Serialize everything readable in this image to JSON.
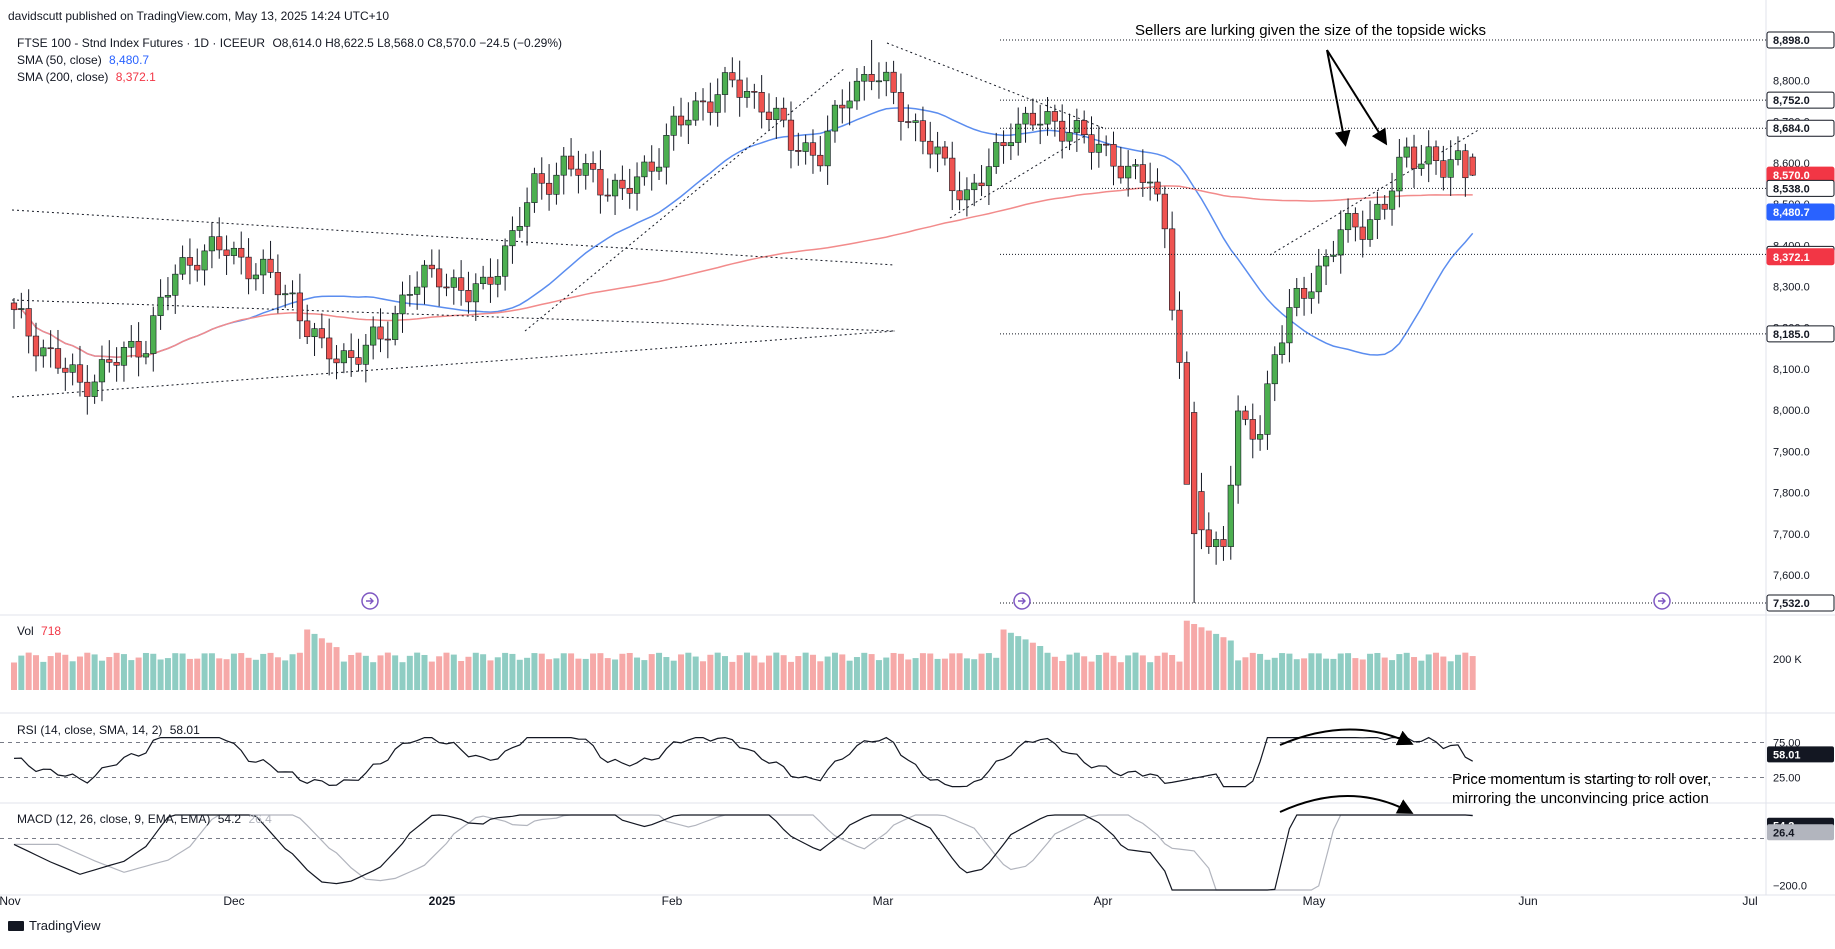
{
  "publish": {
    "user": "davidscutt",
    "text": "published on TradingView.com, May 13, 2025 14:24 UTC+10"
  },
  "legend": {
    "instrument": "FTSE 100 - Stnd Index Futures · 1D · ICEEUR",
    "ohlc": "O8,614.0  H8,622.5  L8,568.0  C8,570.0  −24.5 (−0.29%)",
    "sma50_label": "SMA (50, close)",
    "sma50_value": "8,480.7",
    "sma200_label": "SMA (200, close)",
    "sma200_value": "8,372.1"
  },
  "colors": {
    "up": "#4caf50",
    "down": "#ef5350",
    "up_vol": "#8fcdc3",
    "down_vol": "#f6a9a8",
    "sma50": "#5b8def",
    "sma200": "#f28b8b",
    "tag_dark": "#131722",
    "tag_red": "#f23645",
    "tag_blue": "#2962ff",
    "grid": "#f0f3fa",
    "text_muted": "#787b86"
  },
  "annotations": {
    "sellers": "Sellers are lurking given the size of the topside wicks",
    "momentum_line1": "Price momentum is starting to roll over,",
    "momentum_line2": "mirroring the unconvincing price action"
  },
  "panes": {
    "vol_label": "Vol",
    "vol_value": "718",
    "vol_tick": "200 K",
    "rsi_label": "RSI (14, close, SMA, 14, 2)",
    "rsi_value": "58.01",
    "rsi_ticks": [
      "75.00",
      "25.00"
    ],
    "macd_label": "MACD (12, 26, close, 9, EMA, EMA)",
    "macd_value": "54.2",
    "macd_signal": "26.4",
    "macd_tick": "−200.0"
  },
  "watermark": "TradingView",
  "chart_data": {
    "type": "candlestick",
    "y_ticks": [
      7600,
      7700,
      7800,
      7900,
      8000,
      8100,
      8200,
      8300,
      8400,
      8500,
      8600,
      8700,
      8800
    ],
    "y_tick_labels": [
      "7,600.0",
      "7,700.0",
      "7,800.0",
      "7,900.0",
      "8,000.0",
      "8,100.0",
      "8,200.0",
      "8,300.0",
      "8,400.0",
      "8,500.0",
      "8,600.0",
      "8,700.0",
      "8,800.0"
    ],
    "ylim": [
      7532,
      8898
    ],
    "x_labels": [
      "Nov",
      "Dec",
      "2025",
      "Feb",
      "Mar",
      "Apr",
      "May",
      "Jun",
      "Jul"
    ],
    "price_tags": [
      {
        "value": 8898,
        "label": "8,898.0",
        "style": "dark"
      },
      {
        "value": 8752,
        "label": "8,752.0",
        "style": "dark"
      },
      {
        "value": 8684,
        "label": "8,684.0",
        "style": "dark"
      },
      {
        "value": 8570,
        "label": "8,570.0",
        "style": "red"
      },
      {
        "value": 8538,
        "label": "8,538.0",
        "style": "dark"
      },
      {
        "value": 8480.7,
        "label": "8,480.7",
        "style": "blue"
      },
      {
        "value": 8378,
        "label": "8,378.0",
        "style": "dark"
      },
      {
        "value": 8372.1,
        "label": "8,372.1",
        "style": "red"
      },
      {
        "value": 8185,
        "label": "8,185.0",
        "style": "dark"
      },
      {
        "value": 7532,
        "label": "7,532.0",
        "style": "dark"
      }
    ]
  }
}
